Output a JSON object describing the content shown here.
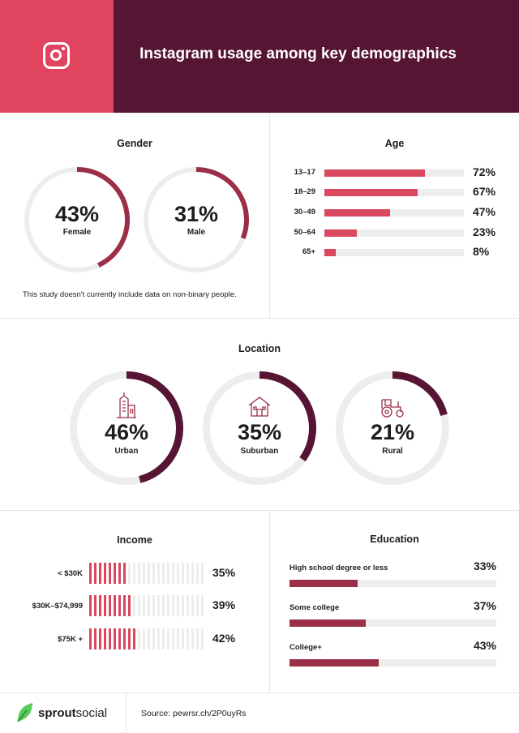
{
  "header": {
    "title": "Instagram usage among key demographics",
    "icon": "instagram-icon"
  },
  "gender": {
    "title": "Gender",
    "items": [
      {
        "pct_label": "43%",
        "value": 43,
        "label": "Female"
      },
      {
        "pct_label": "31%",
        "value": 31,
        "label": "Male"
      }
    ],
    "note": "This study doesn't currently include data on non-binary people."
  },
  "age": {
    "title": "Age",
    "items": [
      {
        "label": "13–17",
        "value": 72,
        "pct_label": "72%"
      },
      {
        "label": "18–29",
        "value": 67,
        "pct_label": "67%"
      },
      {
        "label": "30–49",
        "value": 47,
        "pct_label": "47%"
      },
      {
        "label": "50–64",
        "value": 23,
        "pct_label": "23%"
      },
      {
        "label": "65+",
        "value": 8,
        "pct_label": "8%"
      }
    ]
  },
  "location": {
    "title": "Location",
    "items": [
      {
        "pct_label": "46%",
        "value": 46,
        "label": "Urban",
        "icon": "city-building-icon"
      },
      {
        "pct_label": "35%",
        "value": 35,
        "label": "Suburban",
        "icon": "house-icon"
      },
      {
        "pct_label": "21%",
        "value": 21,
        "label": "Rural",
        "icon": "tractor-icon"
      }
    ]
  },
  "income": {
    "title": "Income",
    "items": [
      {
        "label": "< $30K",
        "value": 35,
        "pct_label": "35%"
      },
      {
        "label": "$30K–$74,999",
        "value": 39,
        "pct_label": "39%"
      },
      {
        "label": "$75K +",
        "value": 42,
        "pct_label": "42%"
      }
    ]
  },
  "education": {
    "title": "Education",
    "items": [
      {
        "label": "High school degree or less",
        "value": 33,
        "pct_label": "33%"
      },
      {
        "label": "Some college",
        "value": 37,
        "pct_label": "37%"
      },
      {
        "label": "College+",
        "value": 43,
        "pct_label": "43%"
      }
    ]
  },
  "footer": {
    "brand_bold": "sprout",
    "brand_rest": "social",
    "source": "Source: pewrsr.ch/2P0uyRs",
    "icon": "sprout-leaf-icon"
  },
  "colors": {
    "header_bg": "#551533",
    "header_accent": "#e1445f",
    "bar_light": "#d9485f",
    "ring_gender": "#9c2f48",
    "ring_location": "#551533",
    "track": "#ededed",
    "brand_green": "#59cb59"
  }
}
